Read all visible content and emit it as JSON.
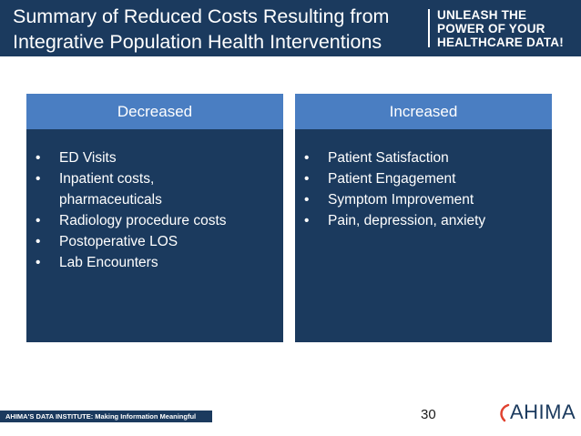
{
  "header": {
    "title_line1": "Summary of Reduced Costs Resulting from",
    "title_line2": "Integrative Population Health Interventions",
    "tagline_line1": "UNLEASH THE",
    "tagline_line2": "POWER OF YOUR",
    "tagline_line3": "HEALTHCARE DATA!"
  },
  "decreased": {
    "label": "Decreased",
    "items": [
      "ED Visits",
      "Inpatient costs,",
      "pharmaceuticals",
      "Radiology procedure costs",
      "Postoperative LOS",
      "Lab Encounters"
    ]
  },
  "increased": {
    "label": "Increased",
    "items": [
      "Patient Satisfaction",
      "Patient Engagement",
      "Symptom Improvement",
      "Pain, depression, anxiety"
    ]
  },
  "bullet": "•",
  "footer": {
    "banner": "AHIMA'S DATA INSTITUTE: Making Information Meaningful",
    "page_number": "30",
    "logo": "AHIMA"
  },
  "colors": {
    "navy": "#1b3a5e",
    "header_blue": "#4a7ec2",
    "logo_accent": "#e0412f"
  }
}
